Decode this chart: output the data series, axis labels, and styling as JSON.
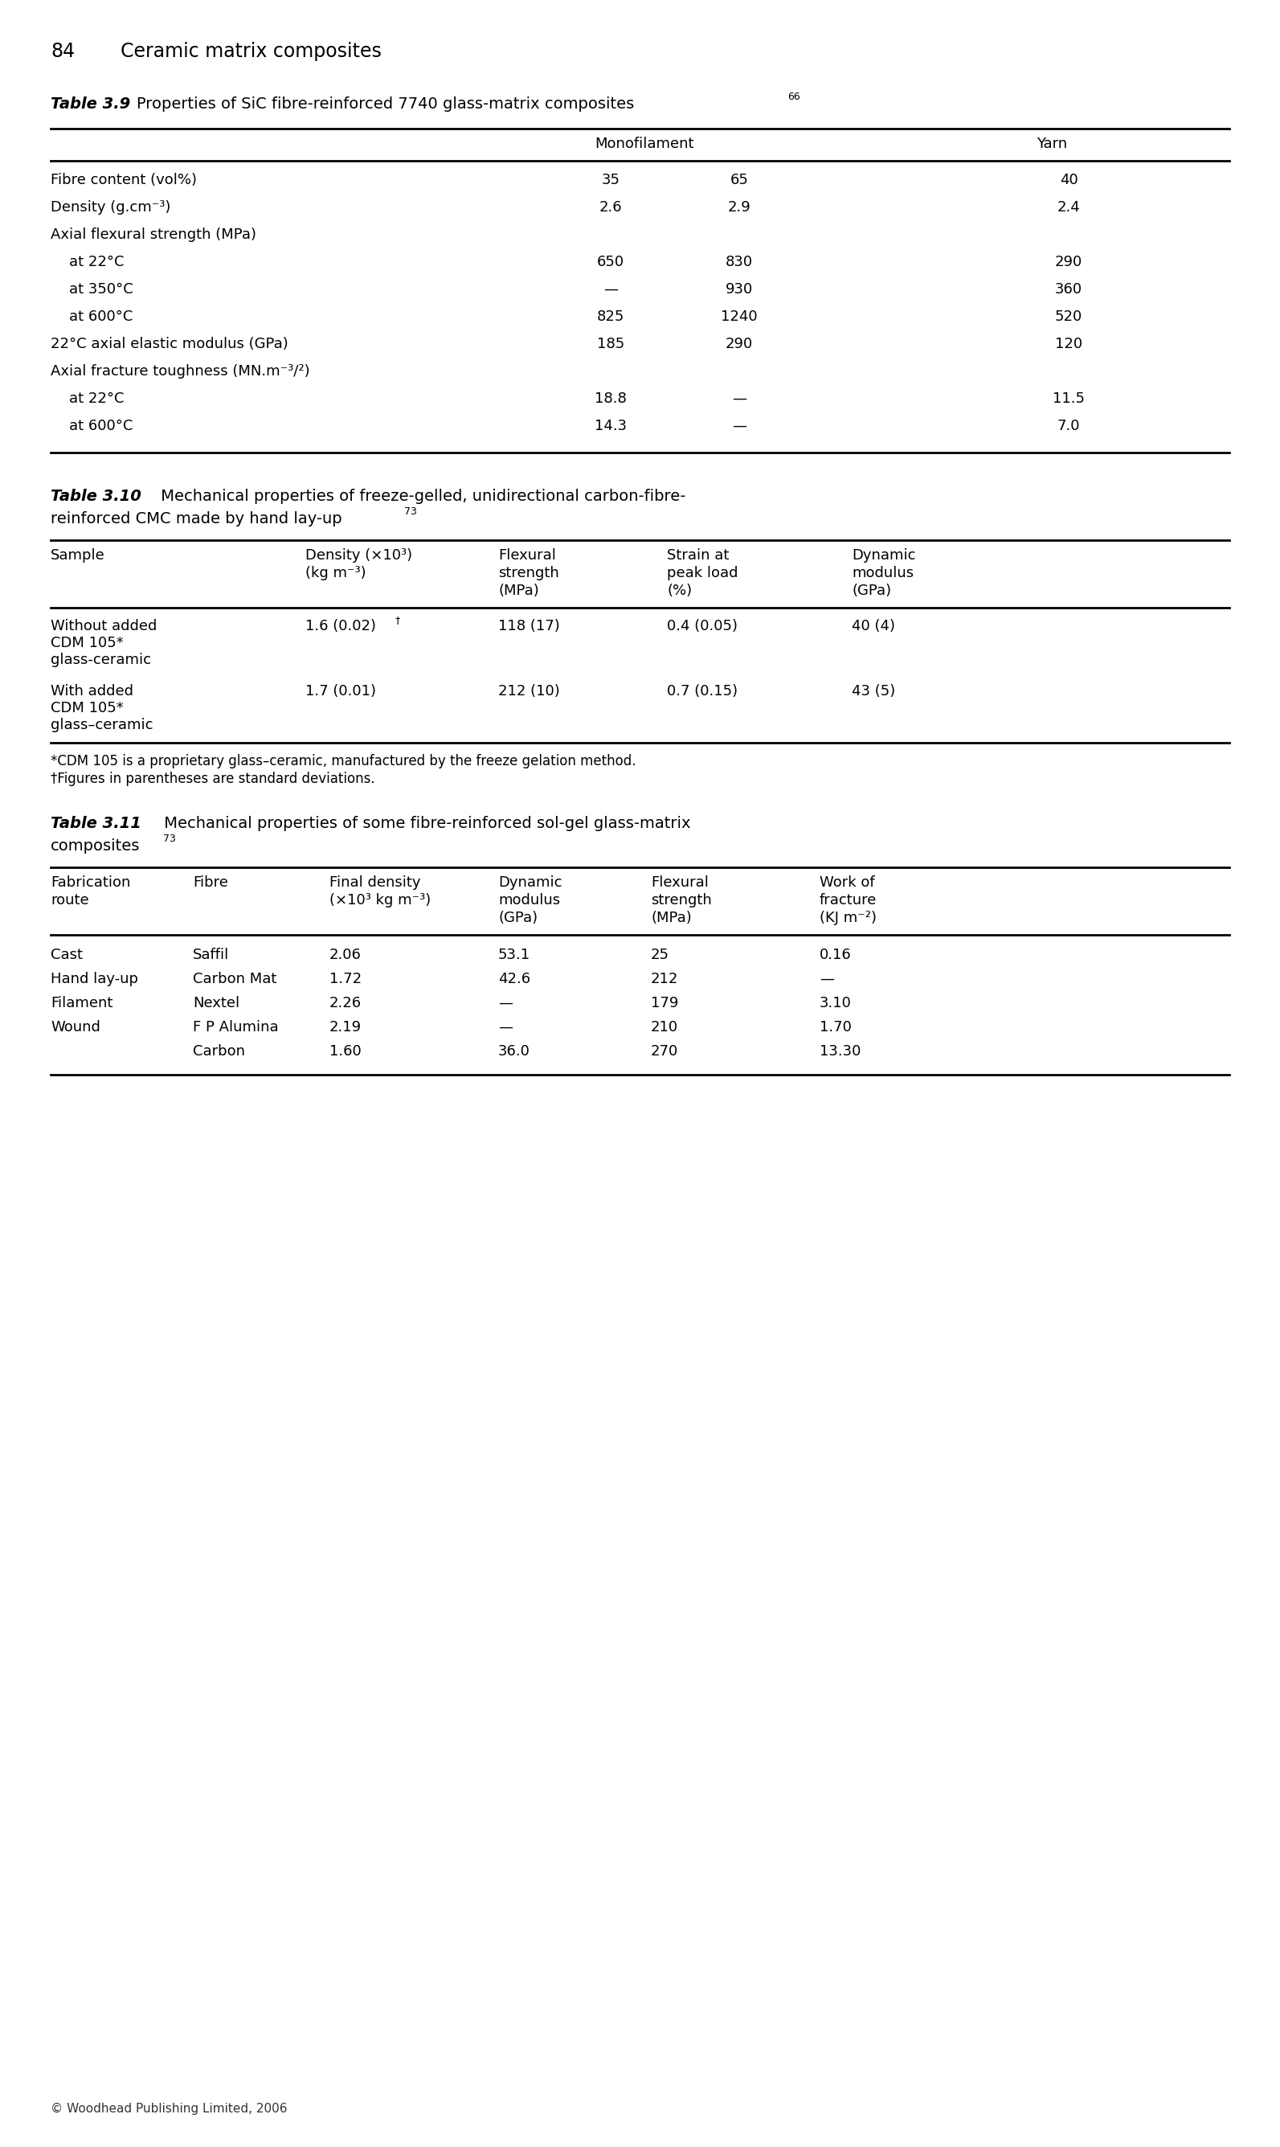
{
  "page_header_num": "84",
  "page_header_title": "Ceramic matrix composites",
  "table39_title_bold": "Table 3.9",
  "table39_title_normal": " Properties of SiC fibre-reinforced 7740 glass-matrix composites",
  "table39_sup": "66",
  "table310_title_bold": "Table 3.10",
  "table310_title_normal": " Mechanical properties of freeze-gelled, unidirectional carbon-fibre-",
  "table310_title_line2": "reinforced CMC made by hand lay-up",
  "table310_sup": "73",
  "table311_title_bold": "Table 3.11",
  "table311_title_normal": " Mechanical properties of some fibre-reinforced sol-gel glass-matrix",
  "table311_title_line2": "composites",
  "table311_sup": "73",
  "footnote1": "*CDM 105 is a proprietary glass–ceramic, manufactured by the freeze gelation method.",
  "footnote2": "†Figures in parentheses are standard deviations.",
  "footer": "© Woodhead Publishing Limited, 2006"
}
